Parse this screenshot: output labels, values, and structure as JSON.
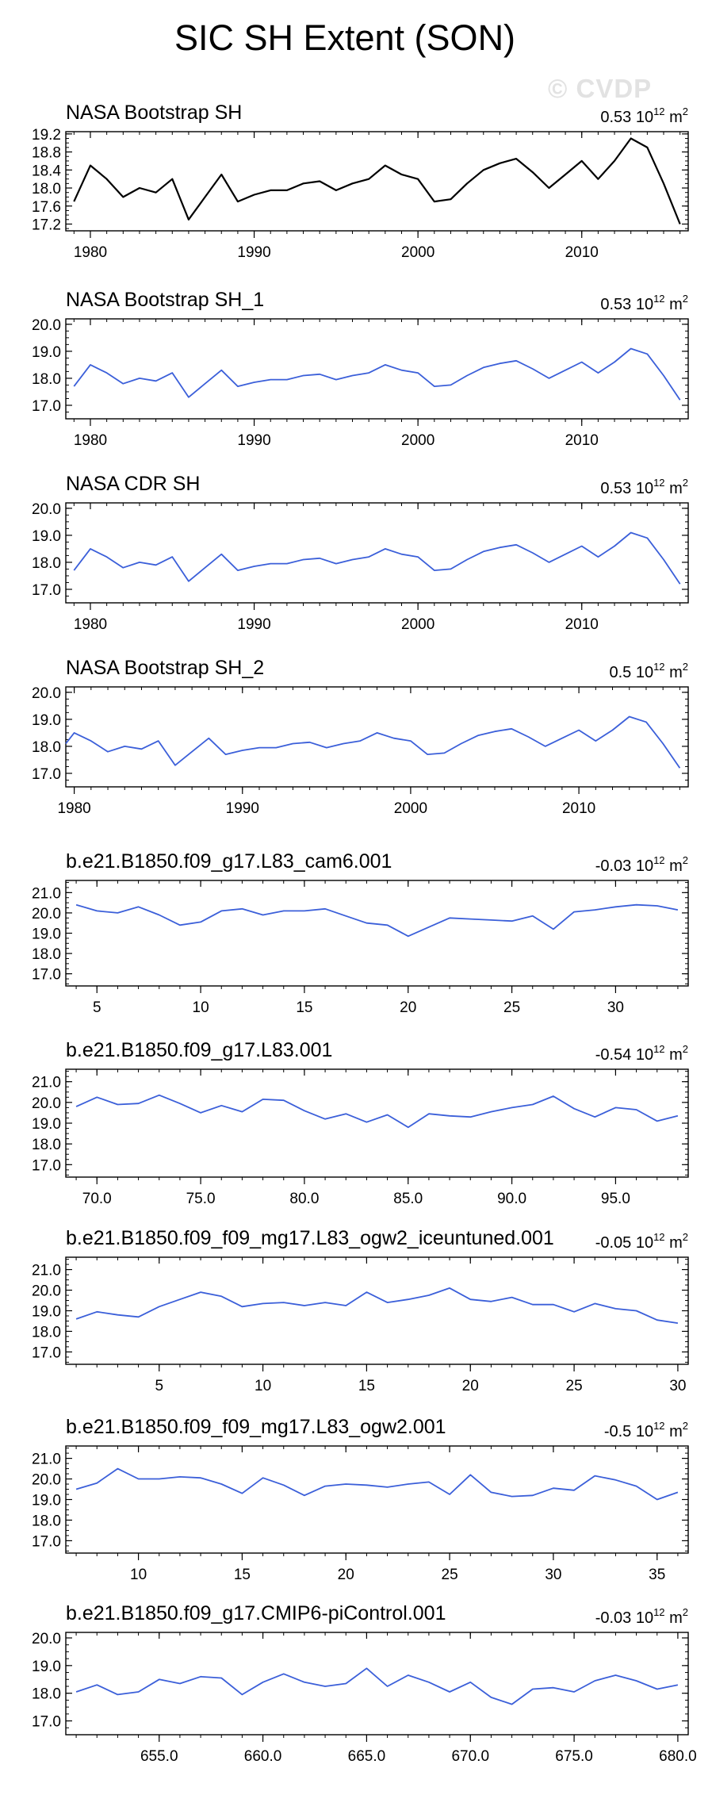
{
  "title": "SIC SH Extent (SON)",
  "watermark": "© CVDP",
  "colors": {
    "obs": "#000000",
    "model": "#3b5fd9",
    "frame": "#000000"
  },
  "chart_data": [
    {
      "type": "line",
      "title": "NASA Bootstrap SH",
      "trend": "0.53 10^12 m^2",
      "trend_value": "0.53",
      "trend_unit": "10",
      "trend_exp": "12",
      "trend_suffix": "m",
      "trend_suffix_exp": "2",
      "color": "obs",
      "x": [
        1979,
        1980,
        1981,
        1982,
        1983,
        1984,
        1985,
        1986,
        1987,
        1988,
        1989,
        1990,
        1991,
        1992,
        1993,
        1994,
        1995,
        1996,
        1997,
        1998,
        1999,
        2000,
        2001,
        2002,
        2003,
        2004,
        2005,
        2006,
        2007,
        2008,
        2009,
        2010,
        2011,
        2012,
        2013,
        2014,
        2015,
        2016
      ],
      "values": [
        17.7,
        18.5,
        18.2,
        17.8,
        18.0,
        17.9,
        18.2,
        17.3,
        17.8,
        18.3,
        17.7,
        17.85,
        17.95,
        17.95,
        18.1,
        18.15,
        17.95,
        18.1,
        18.2,
        18.5,
        18.3,
        18.2,
        17.7,
        17.75,
        18.1,
        18.4,
        18.55,
        18.65,
        18.35,
        18.0,
        18.3,
        18.6,
        18.2,
        18.6,
        19.1,
        18.9,
        18.1,
        17.2
      ],
      "xlim": [
        1978.5,
        2016.5
      ],
      "ylim": [
        17.05,
        19.25
      ],
      "yticks": [
        17.2,
        17.6,
        18.0,
        18.4,
        18.8,
        19.2
      ],
      "yticklabels": [
        "17.2",
        "17.6",
        "18.0",
        "18.4",
        "18.8",
        "19.2"
      ],
      "xticks": [
        1980,
        1990,
        2000,
        2010
      ],
      "xticklabels": [
        "1980",
        "1990",
        "2000",
        "2010"
      ]
    },
    {
      "type": "line",
      "title": "NASA Bootstrap SH_1",
      "trend": "0.53 10^12 m^2",
      "trend_value": "0.53",
      "trend_unit": "10",
      "trend_exp": "12",
      "trend_suffix": "m",
      "trend_suffix_exp": "2",
      "color": "model",
      "x": [
        1979,
        1980,
        1981,
        1982,
        1983,
        1984,
        1985,
        1986,
        1987,
        1988,
        1989,
        1990,
        1991,
        1992,
        1993,
        1994,
        1995,
        1996,
        1997,
        1998,
        1999,
        2000,
        2001,
        2002,
        2003,
        2004,
        2005,
        2006,
        2007,
        2008,
        2009,
        2010,
        2011,
        2012,
        2013,
        2014,
        2015,
        2016
      ],
      "values": [
        17.7,
        18.5,
        18.2,
        17.8,
        18.0,
        17.9,
        18.2,
        17.3,
        17.8,
        18.3,
        17.7,
        17.85,
        17.95,
        17.95,
        18.1,
        18.15,
        17.95,
        18.1,
        18.2,
        18.5,
        18.3,
        18.2,
        17.7,
        17.75,
        18.1,
        18.4,
        18.55,
        18.65,
        18.35,
        18.0,
        18.3,
        18.6,
        18.2,
        18.6,
        19.1,
        18.9,
        18.1,
        17.2
      ],
      "xlim": [
        1978.5,
        2016.5
      ],
      "ylim": [
        16.5,
        20.2
      ],
      "yticks": [
        17.0,
        18.0,
        19.0,
        20.0
      ],
      "yticklabels": [
        "17.0",
        "18.0",
        "19.0",
        "20.0"
      ],
      "xticks": [
        1980,
        1990,
        2000,
        2010
      ],
      "xticklabels": [
        "1980",
        "1990",
        "2000",
        "2010"
      ]
    },
    {
      "type": "line",
      "title": "NASA CDR SH",
      "trend": "0.53 10^12 m^2",
      "trend_value": "0.53",
      "trend_unit": "10",
      "trend_exp": "12",
      "trend_suffix": "m",
      "trend_suffix_exp": "2",
      "color": "model",
      "x": [
        1979,
        1980,
        1981,
        1982,
        1983,
        1984,
        1985,
        1986,
        1987,
        1988,
        1989,
        1990,
        1991,
        1992,
        1993,
        1994,
        1995,
        1996,
        1997,
        1998,
        1999,
        2000,
        2001,
        2002,
        2003,
        2004,
        2005,
        2006,
        2007,
        2008,
        2009,
        2010,
        2011,
        2012,
        2013,
        2014,
        2015,
        2016
      ],
      "values": [
        17.7,
        18.5,
        18.2,
        17.8,
        18.0,
        17.9,
        18.2,
        17.3,
        17.8,
        18.3,
        17.7,
        17.85,
        17.95,
        17.95,
        18.1,
        18.15,
        17.95,
        18.1,
        18.2,
        18.5,
        18.3,
        18.2,
        17.7,
        17.75,
        18.1,
        18.4,
        18.55,
        18.65,
        18.35,
        18.0,
        18.3,
        18.6,
        18.2,
        18.6,
        19.1,
        18.9,
        18.1,
        17.2
      ],
      "xlim": [
        1978.5,
        2016.5
      ],
      "ylim": [
        16.5,
        20.2
      ],
      "yticks": [
        17.0,
        18.0,
        19.0,
        20.0
      ],
      "yticklabels": [
        "17.0",
        "18.0",
        "19.0",
        "20.0"
      ],
      "xticks": [
        1980,
        1990,
        2000,
        2010
      ],
      "xticklabels": [
        "1980",
        "1990",
        "2000",
        "2010"
      ]
    },
    {
      "type": "line",
      "title": "NASA Bootstrap SH_2",
      "trend": "0.5 10^12 m^2",
      "trend_value": "0.5",
      "trend_unit": "10",
      "trend_exp": "12",
      "trend_suffix": "m",
      "trend_suffix_exp": "2",
      "color": "model",
      "x": [
        1979.5,
        1980,
        1981,
        1982,
        1983,
        1984,
        1985,
        1986,
        1987,
        1988,
        1989,
        1990,
        1991,
        1992,
        1993,
        1994,
        1995,
        1996,
        1997,
        1998,
        1999,
        2000,
        2001,
        2002,
        2003,
        2004,
        2005,
        2006,
        2007,
        2008,
        2009,
        2010,
        2011,
        2012,
        2013,
        2014,
        2015,
        2016
      ],
      "values": [
        18.1,
        18.5,
        18.2,
        17.8,
        18.0,
        17.9,
        18.2,
        17.3,
        17.8,
        18.3,
        17.7,
        17.85,
        17.95,
        17.95,
        18.1,
        18.15,
        17.95,
        18.1,
        18.2,
        18.5,
        18.3,
        18.2,
        17.7,
        17.75,
        18.1,
        18.4,
        18.55,
        18.65,
        18.35,
        18.0,
        18.3,
        18.6,
        18.2,
        18.6,
        19.1,
        18.9,
        18.1,
        17.2
      ],
      "xlim": [
        1979.5,
        2016.5
      ],
      "ylim": [
        16.5,
        20.2
      ],
      "yticks": [
        17.0,
        18.0,
        19.0,
        20.0
      ],
      "yticklabels": [
        "17.0",
        "18.0",
        "19.0",
        "20.0"
      ],
      "xticks": [
        1980,
        1990,
        2000,
        2010
      ],
      "xticklabels": [
        "1980",
        "1990",
        "2000",
        "2010"
      ]
    },
    {
      "type": "line",
      "title": "b.e21.B1850.f09_g17.L83_cam6.001",
      "trend": "-0.03 10^12 m^2",
      "trend_value": "-0.03",
      "trend_unit": "10",
      "trend_exp": "12",
      "trend_suffix": "m",
      "trend_suffix_exp": "2",
      "color": "model",
      "x": [
        4,
        5,
        6,
        7,
        8,
        9,
        10,
        11,
        12,
        13,
        14,
        15,
        16,
        17,
        18,
        19,
        20,
        21,
        22,
        23,
        24,
        25,
        26,
        27,
        28,
        29,
        30,
        31,
        32,
        33
      ],
      "values": [
        20.4,
        20.1,
        20.0,
        20.3,
        19.9,
        19.4,
        19.55,
        20.1,
        20.2,
        19.9,
        20.1,
        20.1,
        20.2,
        19.85,
        19.5,
        19.4,
        18.85,
        19.3,
        19.75,
        19.7,
        19.65,
        19.6,
        19.85,
        19.2,
        20.05,
        20.15,
        20.3,
        20.4,
        20.35,
        20.15
      ],
      "xlim": [
        3.5,
        33.5
      ],
      "ylim": [
        16.4,
        21.6
      ],
      "yticks": [
        17.0,
        18.0,
        19.0,
        20.0,
        21.0
      ],
      "yticklabels": [
        "17.0",
        "18.0",
        "19.0",
        "20.0",
        "21.0"
      ],
      "xticks": [
        5,
        10,
        15,
        20,
        25,
        30
      ],
      "xticklabels": [
        "5",
        "10",
        "15",
        "20",
        "25",
        "30"
      ]
    },
    {
      "type": "line",
      "title": "b.e21.B1850.f09_g17.L83.001",
      "trend": "-0.54 10^12 m^2",
      "trend_value": "-0.54",
      "trend_unit": "10",
      "trend_exp": "12",
      "trend_suffix": "m",
      "trend_suffix_exp": "2",
      "color": "model",
      "x": [
        69,
        70,
        71,
        72,
        73,
        74,
        75,
        76,
        77,
        78,
        79,
        80,
        81,
        82,
        83,
        84,
        85,
        86,
        87,
        88,
        89,
        90,
        91,
        92,
        93,
        94,
        95,
        96,
        97,
        98
      ],
      "values": [
        19.8,
        20.25,
        19.9,
        19.95,
        20.35,
        19.95,
        19.5,
        19.85,
        19.55,
        20.15,
        20.1,
        19.6,
        19.2,
        19.45,
        19.05,
        19.4,
        18.8,
        19.45,
        19.35,
        19.3,
        19.55,
        19.75,
        19.9,
        20.3,
        19.7,
        19.3,
        19.75,
        19.65,
        19.1,
        19.35
      ],
      "xlim": [
        68.5,
        98.5
      ],
      "ylim": [
        16.4,
        21.6
      ],
      "yticks": [
        17.0,
        18.0,
        19.0,
        20.0,
        21.0
      ],
      "yticklabels": [
        "17.0",
        "18.0",
        "19.0",
        "20.0",
        "21.0"
      ],
      "xticks": [
        70,
        75,
        80,
        85,
        90,
        95
      ],
      "xticklabels": [
        "70.0",
        "75.0",
        "80.0",
        "85.0",
        "90.0",
        "95.0"
      ]
    },
    {
      "type": "line",
      "title": "b.e21.B1850.f09_f09_mg17.L83_ogw2_iceuntuned.001",
      "trend": "-0.05 10^12 m^2",
      "trend_value": "-0.05",
      "trend_unit": "10",
      "trend_exp": "12",
      "trend_suffix": "m",
      "trend_suffix_exp": "2",
      "color": "model",
      "x": [
        1,
        2,
        3,
        4,
        5,
        6,
        7,
        8,
        9,
        10,
        11,
        12,
        13,
        14,
        15,
        16,
        17,
        18,
        19,
        20,
        21,
        22,
        23,
        24,
        25,
        26,
        27,
        28,
        29,
        30
      ],
      "values": [
        18.6,
        18.95,
        18.8,
        18.7,
        19.2,
        19.55,
        19.9,
        19.7,
        19.2,
        19.35,
        19.4,
        19.25,
        19.4,
        19.25,
        19.9,
        19.4,
        19.55,
        19.75,
        20.1,
        19.55,
        19.45,
        19.65,
        19.3,
        19.3,
        18.95,
        19.35,
        19.1,
        19.0,
        18.55,
        18.4
      ],
      "xlim": [
        0.5,
        30.5
      ],
      "ylim": [
        16.4,
        21.6
      ],
      "yticks": [
        17.0,
        18.0,
        19.0,
        20.0,
        21.0
      ],
      "yticklabels": [
        "17.0",
        "18.0",
        "19.0",
        "20.0",
        "21.0"
      ],
      "xticks": [
        5,
        10,
        15,
        20,
        25,
        30
      ],
      "xticklabels": [
        "5",
        "10",
        "15",
        "20",
        "25",
        "30"
      ]
    },
    {
      "type": "line",
      "title": "b.e21.B1850.f09_f09_mg17.L83_ogw2.001",
      "trend": "-0.5 10^12 m^2",
      "trend_value": "-0.5",
      "trend_unit": "10",
      "trend_exp": "12",
      "trend_suffix": "m",
      "trend_suffix_exp": "2",
      "color": "model",
      "x": [
        7,
        8,
        9,
        10,
        11,
        12,
        13,
        14,
        15,
        16,
        17,
        18,
        19,
        20,
        21,
        22,
        23,
        24,
        25,
        26,
        27,
        28,
        29,
        30,
        31,
        32,
        33,
        34,
        35,
        36
      ],
      "values": [
        19.5,
        19.8,
        20.5,
        20.0,
        20.0,
        20.1,
        20.05,
        19.75,
        19.3,
        20.05,
        19.7,
        19.2,
        19.65,
        19.75,
        19.7,
        19.6,
        19.75,
        19.85,
        19.25,
        20.2,
        19.35,
        19.15,
        19.2,
        19.55,
        19.45,
        20.15,
        19.95,
        19.65,
        19.0,
        19.35
      ],
      "xlim": [
        6.5,
        36.5
      ],
      "ylim": [
        16.4,
        21.6
      ],
      "yticks": [
        17.0,
        18.0,
        19.0,
        20.0,
        21.0
      ],
      "yticklabels": [
        "17.0",
        "18.0",
        "19.0",
        "20.0",
        "21.0"
      ],
      "xticks": [
        10,
        15,
        20,
        25,
        30,
        35
      ],
      "xticklabels": [
        "10",
        "15",
        "20",
        "25",
        "30",
        "35"
      ]
    },
    {
      "type": "line",
      "title": "b.e21.B1850.f09_g17.CMIP6-piControl.001",
      "trend": "-0.03 10^12 m^2",
      "trend_value": "-0.03",
      "trend_unit": "10",
      "trend_exp": "12",
      "trend_suffix": "m",
      "trend_suffix_exp": "2",
      "color": "model",
      "x": [
        651,
        652,
        653,
        654,
        655,
        656,
        657,
        658,
        659,
        660,
        661,
        662,
        663,
        664,
        665,
        666,
        667,
        668,
        669,
        670,
        671,
        672,
        673,
        674,
        675,
        676,
        677,
        678,
        679,
        680
      ],
      "values": [
        18.05,
        18.3,
        17.95,
        18.05,
        18.5,
        18.35,
        18.6,
        18.55,
        17.95,
        18.4,
        18.7,
        18.4,
        18.25,
        18.35,
        18.9,
        18.25,
        18.65,
        18.4,
        18.05,
        18.4,
        17.85,
        17.6,
        18.15,
        18.2,
        18.05,
        18.45,
        18.65,
        18.45,
        18.15,
        18.3
      ],
      "xlim": [
        650.5,
        680.5
      ],
      "ylim": [
        16.5,
        20.2
      ],
      "yticks": [
        17.0,
        18.0,
        19.0,
        20.0
      ],
      "yticklabels": [
        "17.0",
        "18.0",
        "19.0",
        "20.0"
      ],
      "xticks": [
        655,
        660,
        665,
        670,
        675,
        680
      ],
      "xticklabels": [
        "655.0",
        "660.0",
        "665.0",
        "670.0",
        "675.0",
        "680.0"
      ]
    }
  ]
}
